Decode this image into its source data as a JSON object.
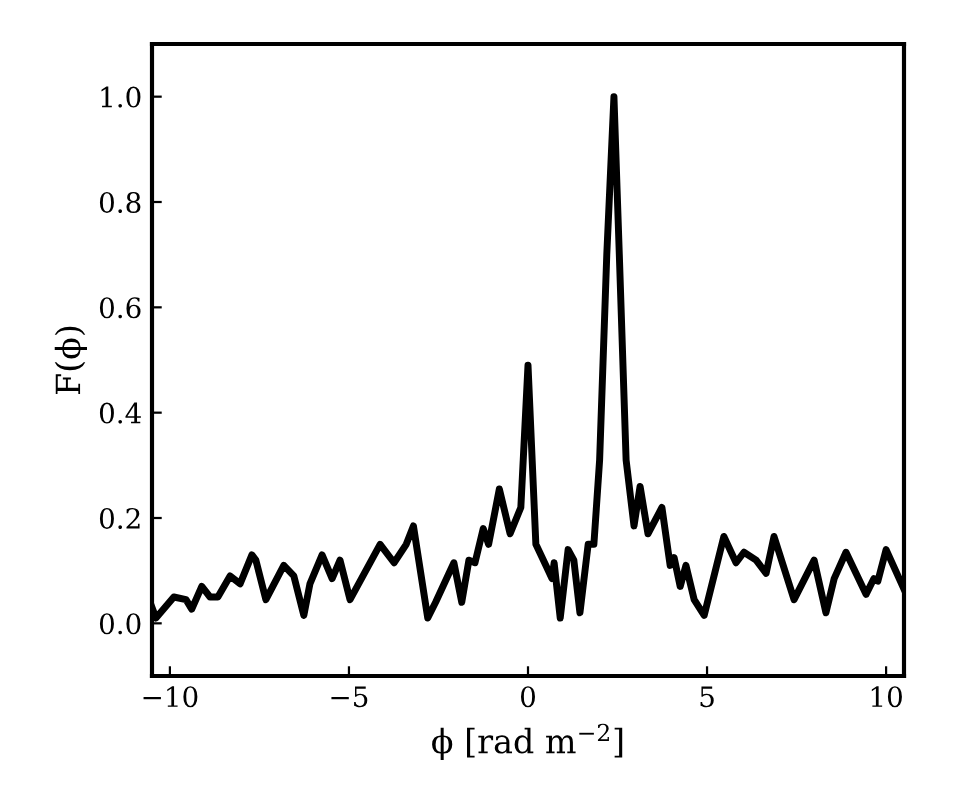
{
  "chart_data": {
    "type": "line",
    "xlabel": "ϕ [rad m$^{−2}$]",
    "ylabel": "F(ϕ)",
    "xlim": [
      -10.5,
      10.5
    ],
    "ylim": [
      -0.1,
      1.1
    ],
    "xticks": [
      {
        "value": -10,
        "label": "−10"
      },
      {
        "value": -5,
        "label": "−5"
      },
      0,
      5,
      10
    ],
    "yticks": [
      {
        "value": 0,
        "label": "0.0"
      },
      0.2,
      0.4,
      0.6,
      0.8,
      {
        "value": 1,
        "label": "1.0"
      }
    ],
    "grid": false,
    "legend": false,
    "marker": "none",
    "line_style": "solid",
    "series": [
      {
        "color": "#000000",
        "x": [
          -10.5,
          -10.39,
          -9.89,
          -9.55,
          -9.39,
          -9.11,
          -8.88,
          -8.66,
          -8.32,
          -8.04,
          -7.71,
          -7.6,
          -7.32,
          -6.82,
          -6.54,
          -6.26,
          -6.09,
          -5.75,
          -5.47,
          -5.25,
          -4.97,
          -4.13,
          -3.74,
          -3.4,
          -3.2,
          -2.8,
          -2.58,
          -2.07,
          -1.85,
          -1.65,
          -1.48,
          -1.25,
          -1.1,
          -0.8,
          -0.5,
          -0.2,
          0.0,
          0.22,
          0.5,
          0.67,
          0.73,
          0.9,
          1.12,
          1.28,
          1.45,
          1.68,
          1.84,
          2.0,
          2.2,
          2.4,
          2.55,
          2.74,
          2.96,
          3.13,
          3.35,
          3.74,
          3.97,
          4.08,
          4.25,
          4.41,
          4.64,
          4.92,
          5.47,
          5.81,
          6.03,
          6.37,
          6.65,
          6.87,
          7.43,
          7.99,
          8.32,
          8.55,
          8.88,
          9.16,
          9.44,
          9.66,
          9.77,
          10.0,
          10.5
        ],
        "values": [
          0.03,
          0.01,
          0.05,
          0.045,
          0.027,
          0.07,
          0.05,
          0.05,
          0.09,
          0.075,
          0.13,
          0.12,
          0.045,
          0.11,
          0.09,
          0.015,
          0.075,
          0.13,
          0.085,
          0.12,
          0.045,
          0.15,
          0.115,
          0.15,
          0.185,
          0.01,
          0.04,
          0.115,
          0.04,
          0.12,
          0.115,
          0.18,
          0.15,
          0.255,
          0.17,
          0.22,
          0.49,
          0.15,
          0.11,
          0.085,
          0.115,
          0.01,
          0.14,
          0.12,
          0.02,
          0.15,
          0.15,
          0.31,
          0.7,
          1.0,
          0.7,
          0.31,
          0.185,
          0.26,
          0.17,
          0.22,
          0.11,
          0.125,
          0.07,
          0.11,
          0.045,
          0.015,
          0.165,
          0.115,
          0.135,
          0.12,
          0.095,
          0.165,
          0.045,
          0.12,
          0.02,
          0.085,
          0.135,
          0.095,
          0.055,
          0.085,
          0.08,
          0.14,
          0.065
        ]
      }
    ]
  }
}
